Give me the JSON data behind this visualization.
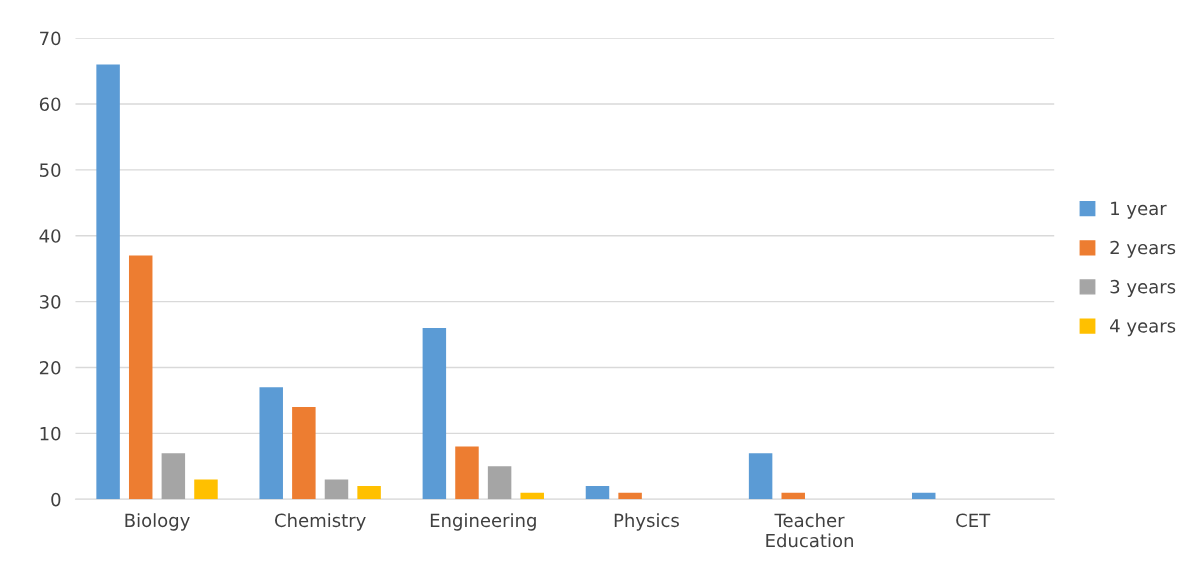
{
  "chart_data": {
    "type": "bar",
    "categories": [
      "Biology",
      "Chemistry",
      "Engineering",
      "Physics",
      "Teacher\nEducation",
      "CET"
    ],
    "series": [
      {
        "name": "1 year",
        "color": "#5b9bd5",
        "values": [
          66,
          17,
          26,
          2,
          7,
          1
        ]
      },
      {
        "name": "2 years",
        "color": "#ed7d31",
        "values": [
          37,
          14,
          8,
          1,
          1,
          0
        ]
      },
      {
        "name": "3 years",
        "color": "#a5a5a5",
        "values": [
          7,
          3,
          5,
          0,
          0,
          0
        ]
      },
      {
        "name": "4 years",
        "color": "#ffc000",
        "values": [
          3,
          2,
          1,
          0,
          0,
          0
        ]
      }
    ],
    "ylim": [
      0,
      70
    ],
    "yticks": [
      0,
      10,
      20,
      30,
      40,
      50,
      60,
      70
    ],
    "grid": "y",
    "legend": "right"
  }
}
